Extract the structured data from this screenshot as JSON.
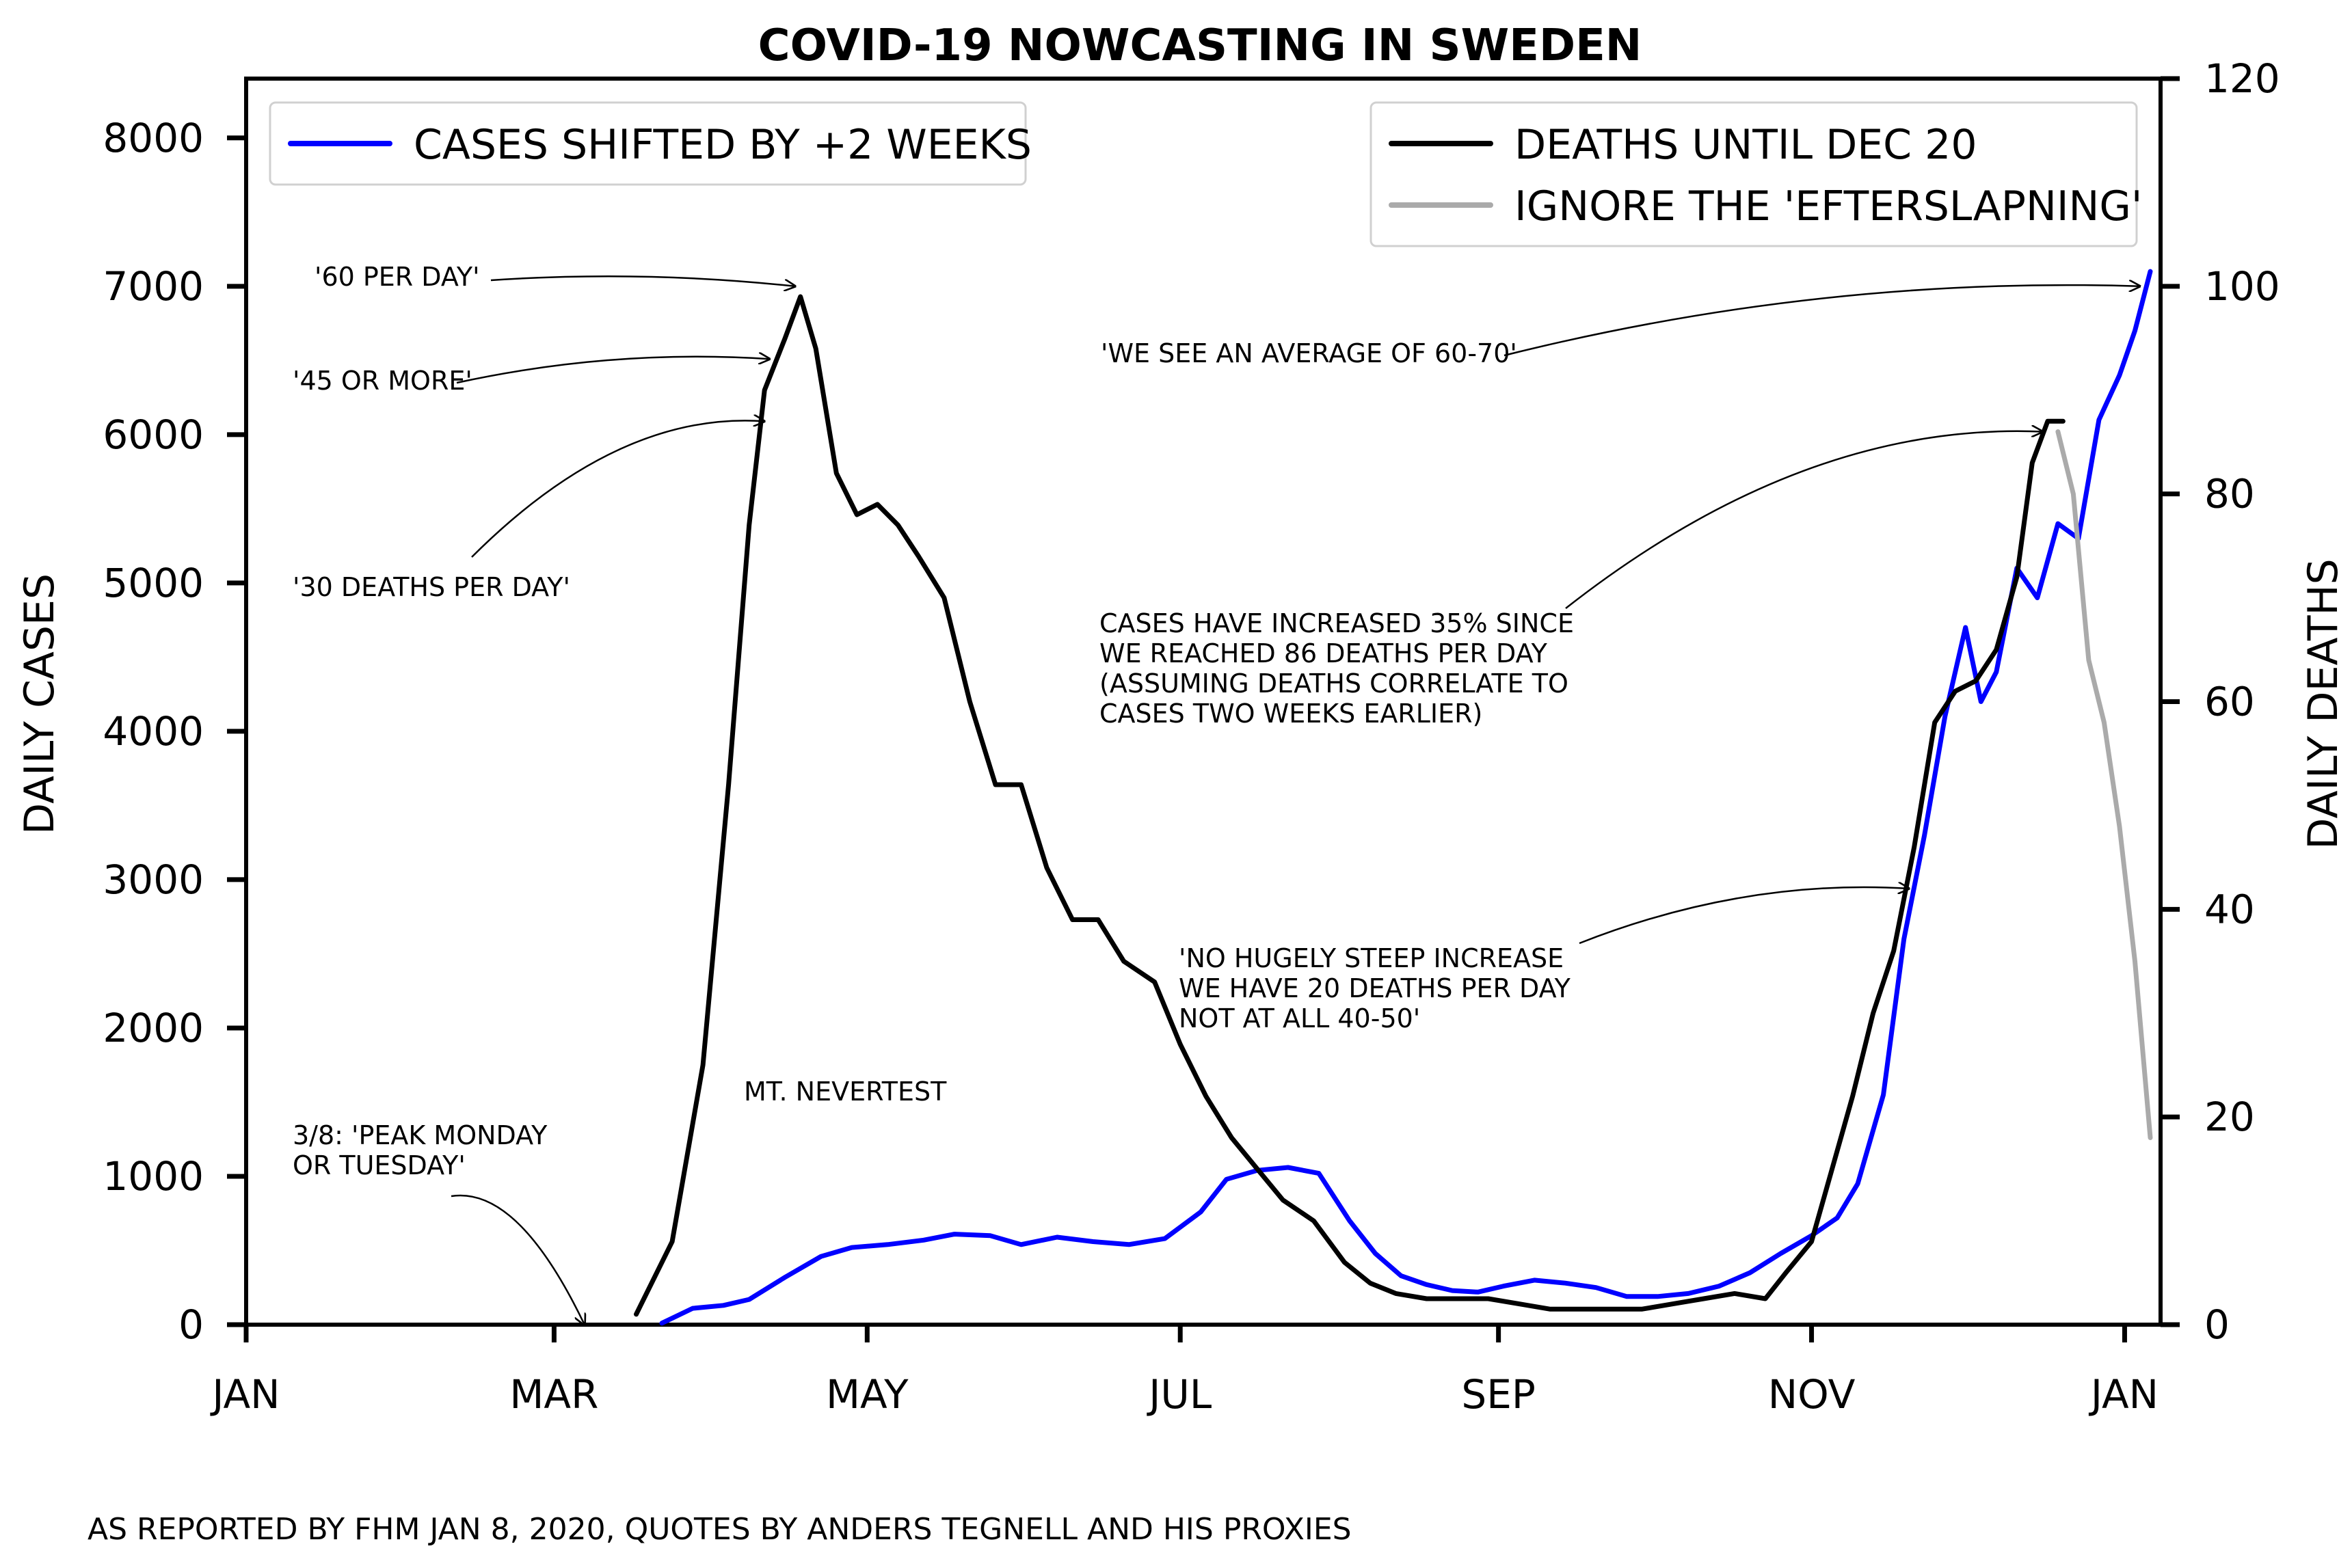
{
  "chart_data": {
    "type": "line",
    "title": "COVID-19 NOWCASTING IN SWEDEN",
    "ylabel_left": "DAILY CASES",
    "ylabel_right": "DAILY DEATHS",
    "xlabel": "",
    "x_range": [
      "2020-01-01",
      "2021-01-08"
    ],
    "x_ticks": [
      {
        "date": "2020-01-01",
        "label": "JAN"
      },
      {
        "date": "2020-03-01",
        "label": "MAR"
      },
      {
        "date": "2020-05-01",
        "label": "MAY"
      },
      {
        "date": "2020-07-01",
        "label": "JUL"
      },
      {
        "date": "2020-09-01",
        "label": "SEP"
      },
      {
        "date": "2020-11-01",
        "label": "NOV"
      },
      {
        "date": "2021-01-01",
        "label": "JAN"
      }
    ],
    "ylim_left": [
      0,
      8400
    ],
    "ylim_right": [
      0,
      120
    ],
    "yticks_left": [
      0,
      1000,
      2000,
      3000,
      4000,
      5000,
      6000,
      7000,
      8000
    ],
    "yticks_right": [
      0,
      20,
      40,
      60,
      80,
      100,
      120
    ],
    "series": [
      {
        "name": "CASES SHIFTED BY +2 WEEKS",
        "axis": "left",
        "color": "#0000ff",
        "points": [
          [
            "2020-03-22",
            10
          ],
          [
            "2020-03-28",
            110
          ],
          [
            "2020-04-03",
            130
          ],
          [
            "2020-04-08",
            170
          ],
          [
            "2020-04-15",
            320
          ],
          [
            "2020-04-22",
            460
          ],
          [
            "2020-04-28",
            520
          ],
          [
            "2020-05-05",
            540
          ],
          [
            "2020-05-12",
            570
          ],
          [
            "2020-05-18",
            610
          ],
          [
            "2020-05-25",
            600
          ],
          [
            "2020-05-31",
            540
          ],
          [
            "2020-06-07",
            590
          ],
          [
            "2020-06-14",
            560
          ],
          [
            "2020-06-21",
            540
          ],
          [
            "2020-06-28",
            580
          ],
          [
            "2020-07-05",
            760
          ],
          [
            "2020-07-10",
            980
          ],
          [
            "2020-07-16",
            1040
          ],
          [
            "2020-07-22",
            1060
          ],
          [
            "2020-07-28",
            1020
          ],
          [
            "2020-08-03",
            700
          ],
          [
            "2020-08-08",
            480
          ],
          [
            "2020-08-13",
            330
          ],
          [
            "2020-08-18",
            270
          ],
          [
            "2020-08-23",
            230
          ],
          [
            "2020-08-28",
            220
          ],
          [
            "2020-09-02",
            260
          ],
          [
            "2020-09-08",
            300
          ],
          [
            "2020-09-14",
            280
          ],
          [
            "2020-09-20",
            250
          ],
          [
            "2020-09-26",
            190
          ],
          [
            "2020-10-02",
            190
          ],
          [
            "2020-10-08",
            210
          ],
          [
            "2020-10-14",
            260
          ],
          [
            "2020-10-20",
            350
          ],
          [
            "2020-10-26",
            480
          ],
          [
            "2020-11-01",
            600
          ],
          [
            "2020-11-06",
            720
          ],
          [
            "2020-11-10",
            950
          ],
          [
            "2020-11-15",
            1550
          ],
          [
            "2020-11-19",
            2600
          ],
          [
            "2020-11-23",
            3300
          ],
          [
            "2020-11-27",
            4100
          ],
          [
            "2020-12-01",
            4700
          ],
          [
            "2020-12-04",
            4200
          ],
          [
            "2020-12-07",
            4400
          ],
          [
            "2020-12-11",
            5100
          ],
          [
            "2020-12-15",
            4900
          ],
          [
            "2020-12-19",
            5400
          ],
          [
            "2020-12-23",
            5300
          ],
          [
            "2020-12-27",
            6100
          ],
          [
            "2020-12-31",
            6400
          ],
          [
            "2021-01-03",
            6700
          ],
          [
            "2021-01-06",
            7100
          ]
        ]
      },
      {
        "name": "DEATHS UNTIL DEC 20",
        "axis": "right",
        "color": "#000000",
        "points": [
          [
            "2020-03-17",
            1
          ],
          [
            "2020-03-24",
            8
          ],
          [
            "2020-03-30",
            25
          ],
          [
            "2020-04-04",
            52
          ],
          [
            "2020-04-08",
            77
          ],
          [
            "2020-04-11",
            90
          ],
          [
            "2020-04-15",
            95
          ],
          [
            "2020-04-18",
            99
          ],
          [
            "2020-04-21",
            94
          ],
          [
            "2020-04-25",
            82
          ],
          [
            "2020-04-29",
            78
          ],
          [
            "2020-05-03",
            79
          ],
          [
            "2020-05-07",
            77
          ],
          [
            "2020-05-11",
            74
          ],
          [
            "2020-05-16",
            70
          ],
          [
            "2020-05-21",
            60
          ],
          [
            "2020-05-26",
            52
          ],
          [
            "2020-05-31",
            52
          ],
          [
            "2020-06-05",
            44
          ],
          [
            "2020-06-10",
            39
          ],
          [
            "2020-06-15",
            39
          ],
          [
            "2020-06-20",
            35
          ],
          [
            "2020-06-26",
            33
          ],
          [
            "2020-07-01",
            27
          ],
          [
            "2020-07-06",
            22
          ],
          [
            "2020-07-11",
            18
          ],
          [
            "2020-07-16",
            15
          ],
          [
            "2020-07-21",
            12
          ],
          [
            "2020-07-27",
            10
          ],
          [
            "2020-08-02",
            6
          ],
          [
            "2020-08-07",
            4
          ],
          [
            "2020-08-12",
            3
          ],
          [
            "2020-08-18",
            2.5
          ],
          [
            "2020-08-24",
            2.5
          ],
          [
            "2020-08-30",
            2.5
          ],
          [
            "2020-09-05",
            2
          ],
          [
            "2020-09-11",
            1.5
          ],
          [
            "2020-09-17",
            1.5
          ],
          [
            "2020-09-23",
            1.5
          ],
          [
            "2020-09-29",
            1.5
          ],
          [
            "2020-10-05",
            2
          ],
          [
            "2020-10-11",
            2.5
          ],
          [
            "2020-10-17",
            3
          ],
          [
            "2020-10-23",
            2.5
          ],
          [
            "2020-10-27",
            5
          ],
          [
            "2020-11-01",
            8
          ],
          [
            "2020-11-05",
            15
          ],
          [
            "2020-11-09",
            22
          ],
          [
            "2020-11-13",
            30
          ],
          [
            "2020-11-17",
            36
          ],
          [
            "2020-11-21",
            46
          ],
          [
            "2020-11-25",
            58
          ],
          [
            "2020-11-29",
            61
          ],
          [
            "2020-12-03",
            62
          ],
          [
            "2020-12-07",
            65
          ],
          [
            "2020-12-11",
            72
          ],
          [
            "2020-12-14",
            83
          ],
          [
            "2020-12-17",
            87
          ],
          [
            "2020-12-20",
            87
          ]
        ]
      },
      {
        "name": "IGNORE THE 'EFTERSLAPNING'",
        "axis": "right",
        "color": "#aaaaaa",
        "points": [
          [
            "2020-12-19",
            86
          ],
          [
            "2020-12-22",
            80
          ],
          [
            "2020-12-25",
            64
          ],
          [
            "2020-12-28",
            58
          ],
          [
            "2020-12-31",
            48
          ],
          [
            "2021-01-03",
            35
          ],
          [
            "2021-01-06",
            18
          ]
        ]
      }
    ],
    "legend": [
      "top-left",
      "top-right"
    ],
    "annotations": [
      {
        "lines": [
          "'60 PER DAY'"
        ],
        "target": [
          "2020-04-18",
          100
        ]
      },
      {
        "lines": [
          "'45 OR MORE'"
        ],
        "target": [
          "2020-04-13",
          93
        ]
      },
      {
        "lines": [
          "'30 DEATHS PER DAY'"
        ],
        "target": [
          "2020-04-12",
          87
        ]
      },
      {
        "lines": [
          "'WE SEE AN AVERAGE OF 60-70'"
        ],
        "target": [
          "2021-01-05",
          100
        ]
      },
      {
        "lines": [
          "CASES HAVE INCREASED 35% SINCE",
          "WE REACHED 86 DEATHS PER DAY",
          "(ASSUMING DEATHS CORRELATE TO",
          " CASES TWO WEEKS EARLIER)"
        ],
        "target": [
          "2020-12-17",
          86
        ]
      },
      {
        "lines": [
          "'NO HUGELY STEEP INCREASE",
          " WE HAVE 20 DEATHS PER DAY",
          " NOT AT ALL 40-50'"
        ],
        "target": [
          "2020-11-21",
          42
        ]
      },
      {
        "lines": [
          "3/8: 'PEAK MONDAY",
          "OR TUESDAY'"
        ],
        "target": [
          "2020-03-08",
          0
        ]
      },
      {
        "lines": [
          "MT. NEVERTEST"
        ],
        "target": null
      }
    ],
    "footnote": "AS REPORTED BY FHM JAN 8, 2020, QUOTES BY ANDERS TEGNELL AND HIS PROXIES"
  }
}
